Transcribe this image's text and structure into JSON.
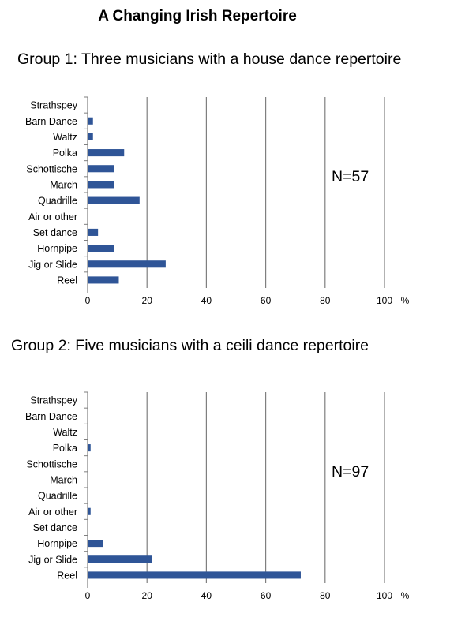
{
  "page_title": "A Changing Irish Repertoire",
  "chart_data": [
    {
      "type": "bar",
      "orientation": "horizontal",
      "title": "Group 1: Three musicians with a house dance repertoire",
      "annotation": "N=57",
      "unit_label": "%",
      "categories": [
        "Strathspey",
        "Barn Dance",
        "Waltz",
        "Polka",
        "Schottische",
        "March",
        "Quadrille",
        "Air or other",
        "Set dance",
        "Hornpipe",
        "Jig or Slide",
        "Reel"
      ],
      "values": [
        0,
        1.8,
        1.8,
        12.3,
        8.8,
        8.8,
        17.5,
        0,
        3.5,
        8.8,
        26.3,
        10.5
      ],
      "xlim": [
        0,
        100
      ],
      "xticks": [
        0,
        20,
        40,
        60,
        80,
        100
      ],
      "grid": "vertical",
      "bar_color": "#2f5597"
    },
    {
      "type": "bar",
      "orientation": "horizontal",
      "title": "Group 2: Five musicians with a ceili dance repertoire",
      "annotation": "N=97",
      "unit_label": "%",
      "categories": [
        "Strathspey",
        "Barn Dance",
        "Waltz",
        "Polka",
        "Schottische",
        "March",
        "Quadrille",
        "Air or other",
        "Set dance",
        "Hornpipe",
        "Jig or Slide",
        "Reel"
      ],
      "values": [
        0,
        0,
        0,
        1,
        0,
        0,
        0,
        1,
        0,
        5.2,
        21.6,
        71.8
      ],
      "xlim": [
        0,
        100
      ],
      "xticks": [
        0,
        20,
        40,
        60,
        80,
        100
      ],
      "grid": "vertical",
      "bar_color": "#2f5597"
    }
  ]
}
